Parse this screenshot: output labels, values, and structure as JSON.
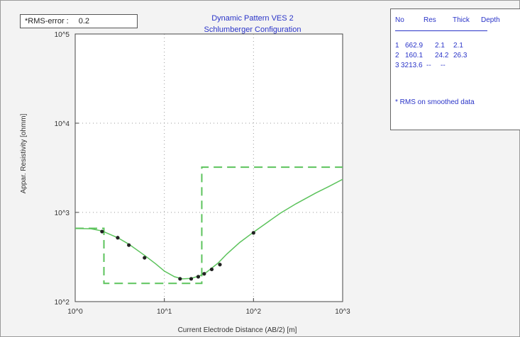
{
  "rms": {
    "label": "*RMS-error :",
    "value": "0.2"
  },
  "title": {
    "line1": "Dynamic Pattern VES 2",
    "line2": "Schlumberger Configuration"
  },
  "table": {
    "headers": [
      "No",
      "Res",
      "Thick",
      "Depth"
    ],
    "rows": [
      [
        "1",
        "662.9",
        "2.1",
        "2.1"
      ],
      [
        "2",
        "160.1",
        "24.2",
        "26.3"
      ],
      [
        "3",
        "3213.6",
        "--",
        "--"
      ]
    ],
    "note": "* RMS on smoothed data"
  },
  "colors": {
    "curve": "#5cc35c",
    "table_text": "#2a34c8",
    "points": "#222222"
  },
  "chart_data": {
    "type": "line",
    "title": "Dynamic Pattern VES 2",
    "subtitle": "Schlumberger Configuration",
    "xlabel": "Current Electrode Distance (AB/2) [m]",
    "ylabel": "Appar. Resistivity [ohmm]",
    "xscale": "log",
    "yscale": "log",
    "xlim": [
      1,
      1000
    ],
    "ylim": [
      100,
      100000
    ],
    "xticks": [
      "10^0",
      "10^1",
      "10^2",
      "10^3"
    ],
    "yticks": [
      "10^2",
      "10^3",
      "10^4",
      "10^5"
    ],
    "grid": true,
    "series": [
      {
        "kind": "model-curve",
        "style": "solid",
        "x": [
          1,
          1.5,
          2,
          3,
          4,
          6,
          8,
          10,
          13,
          16,
          20,
          25,
          30,
          40,
          50,
          70,
          100,
          150,
          200,
          300,
          500,
          700,
          1000
        ],
        "y": [
          660,
          655,
          620,
          520,
          440,
          330,
          265,
          220,
          190,
          180,
          182,
          195,
          215,
          270,
          340,
          460,
          600,
          800,
          980,
          1250,
          1650,
          1950,
          2350
        ]
      },
      {
        "kind": "layer-model",
        "style": "dashed",
        "x": [
          1,
          2.1,
          2.1,
          26.3,
          26.3,
          1000
        ],
        "y": [
          662.9,
          662.9,
          160.1,
          160.1,
          3213.6,
          3213.6
        ]
      },
      {
        "kind": "measured",
        "style": "points",
        "x": [
          2,
          3,
          4,
          6,
          15,
          20,
          24,
          28,
          34,
          42,
          100
        ],
        "y": [
          610,
          520,
          430,
          310,
          180,
          180,
          190,
          205,
          230,
          260,
          590
        ]
      }
    ]
  }
}
